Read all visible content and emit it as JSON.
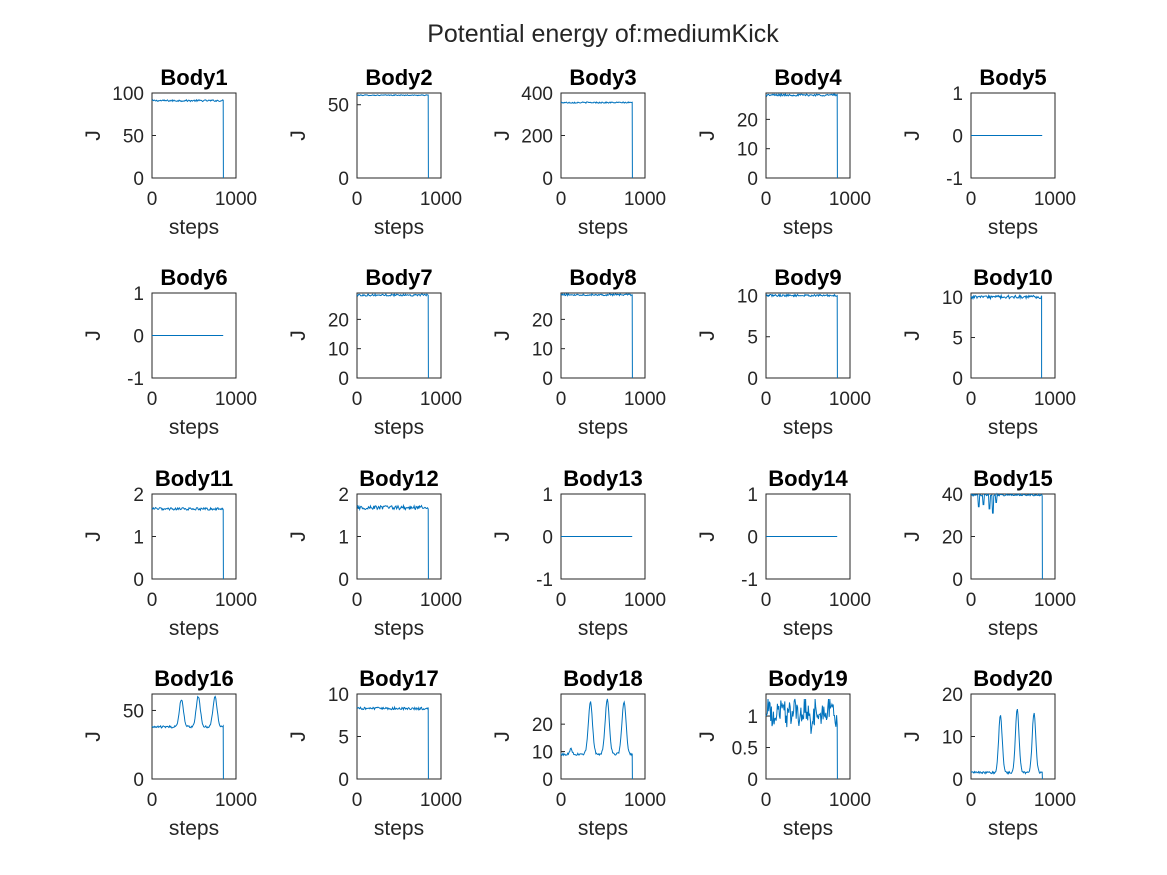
{
  "figure_title": "Potential energy of:mediumKick",
  "colors": {
    "line": "#0072BD",
    "axes": "#262626"
  },
  "chart_data": [
    {
      "type": "line",
      "title": "Body1",
      "xlabel": "steps",
      "ylabel": "J",
      "xlim": [
        0,
        1000
      ],
      "ylim": [
        0,
        100
      ],
      "xticks": [
        "0",
        "1000"
      ],
      "yticks": [
        {
          "v": 0,
          "label": "0"
        },
        {
          "v": 50,
          "label": "50"
        },
        {
          "v": 100,
          "label": "100"
        }
      ],
      "series": [
        {
          "shape": "flat",
          "level": 91,
          "noise": 1.0,
          "x_end": 850,
          "drop_to": 0
        }
      ]
    },
    {
      "type": "line",
      "title": "Body2",
      "xlabel": "steps",
      "ylabel": "J",
      "xlim": [
        0,
        1000
      ],
      "ylim": [
        0,
        58
      ],
      "xticks": [
        "0",
        "1000"
      ],
      "yticks": [
        {
          "v": 0,
          "label": "0"
        },
        {
          "v": 50,
          "label": "50"
        }
      ],
      "series": [
        {
          "shape": "flat",
          "level": 56.5,
          "noise": 0.3,
          "x_end": 850,
          "drop_to": 0
        }
      ]
    },
    {
      "type": "line",
      "title": "Body3",
      "xlabel": "steps",
      "ylabel": "J",
      "xlim": [
        0,
        1000
      ],
      "ylim": [
        0,
        400
      ],
      "xticks": [
        "0",
        "1000"
      ],
      "yticks": [
        {
          "v": 0,
          "label": "0"
        },
        {
          "v": 200,
          "label": "200"
        },
        {
          "v": 400,
          "label": "400"
        }
      ],
      "series": [
        {
          "shape": "flat",
          "level": 355,
          "noise": 3,
          "x_end": 850,
          "drop_to": 0
        }
      ]
    },
    {
      "type": "line",
      "title": "Body4",
      "xlabel": "steps",
      "ylabel": "J",
      "xlim": [
        0,
        1000
      ],
      "ylim": [
        0,
        29
      ],
      "xticks": [
        "0",
        "1000"
      ],
      "yticks": [
        {
          "v": 0,
          "label": "0"
        },
        {
          "v": 10,
          "label": "10"
        },
        {
          "v": 20,
          "label": "20"
        }
      ],
      "series": [
        {
          "shape": "flat",
          "level": 28.3,
          "noise": 0.35,
          "x_end": 850,
          "drop_to": 0
        }
      ]
    },
    {
      "type": "line",
      "title": "Body5",
      "xlabel": "steps",
      "ylabel": "J",
      "xlim": [
        0,
        1000
      ],
      "ylim": [
        -1,
        1
      ],
      "xticks": [
        "0",
        "1000"
      ],
      "yticks": [
        {
          "v": -1,
          "label": "-1"
        },
        {
          "v": 0,
          "label": "0"
        },
        {
          "v": 1,
          "label": "1"
        }
      ],
      "series": [
        {
          "shape": "flat",
          "level": 0,
          "noise": 0,
          "x_end": 850,
          "drop_to": null
        }
      ]
    },
    {
      "type": "line",
      "title": "Body6",
      "xlabel": "steps",
      "ylabel": "J",
      "xlim": [
        0,
        1000
      ],
      "ylim": [
        -1,
        1
      ],
      "xticks": [
        "0",
        "1000"
      ],
      "yticks": [
        {
          "v": -1,
          "label": "-1"
        },
        {
          "v": 0,
          "label": "0"
        },
        {
          "v": 1,
          "label": "1"
        }
      ],
      "series": [
        {
          "shape": "flat",
          "level": 0,
          "noise": 0,
          "x_end": 850,
          "drop_to": null
        }
      ]
    },
    {
      "type": "line",
      "title": "Body7",
      "xlabel": "steps",
      "ylabel": "J",
      "xlim": [
        0,
        1000
      ],
      "ylim": [
        0,
        29
      ],
      "xticks": [
        "0",
        "1000"
      ],
      "yticks": [
        {
          "v": 0,
          "label": "0"
        },
        {
          "v": 10,
          "label": "10"
        },
        {
          "v": 20,
          "label": "20"
        }
      ],
      "series": [
        {
          "shape": "flat",
          "level": 28.3,
          "noise": 0.35,
          "x_end": 850,
          "drop_to": 0
        }
      ]
    },
    {
      "type": "line",
      "title": "Body8",
      "xlabel": "steps",
      "ylabel": "J",
      "xlim": [
        0,
        1000
      ],
      "ylim": [
        0,
        29
      ],
      "xticks": [
        "0",
        "1000"
      ],
      "yticks": [
        {
          "v": 0,
          "label": "0"
        },
        {
          "v": 10,
          "label": "10"
        },
        {
          "v": 20,
          "label": "20"
        }
      ],
      "series": [
        {
          "shape": "flat",
          "level": 28.4,
          "noise": 0.3,
          "x_end": 850,
          "drop_to": 0
        }
      ]
    },
    {
      "type": "line",
      "title": "Body9",
      "xlabel": "steps",
      "ylabel": "J",
      "xlim": [
        0,
        1000
      ],
      "ylim": [
        0,
        10.3
      ],
      "xticks": [
        "0",
        "1000"
      ],
      "yticks": [
        {
          "v": 0,
          "label": "0"
        },
        {
          "v": 5,
          "label": "5"
        },
        {
          "v": 10,
          "label": "10"
        }
      ],
      "series": [
        {
          "shape": "flat",
          "level": 10.0,
          "noise": 0.12,
          "x_end": 850,
          "drop_to": 0
        }
      ]
    },
    {
      "type": "line",
      "title": "Body10",
      "xlabel": "steps",
      "ylabel": "J",
      "xlim": [
        0,
        1000
      ],
      "ylim": [
        0,
        10.5
      ],
      "xticks": [
        "0",
        "1000"
      ],
      "yticks": [
        {
          "v": 0,
          "label": "0"
        },
        {
          "v": 5,
          "label": "5"
        },
        {
          "v": 10,
          "label": "10"
        }
      ],
      "series": [
        {
          "shape": "flat",
          "level": 10.0,
          "noise": 0.2,
          "x_end": 840,
          "drop_to": 0
        }
      ]
    },
    {
      "type": "line",
      "title": "Body11",
      "xlabel": "steps",
      "ylabel": "J",
      "xlim": [
        0,
        1000
      ],
      "ylim": [
        0,
        2
      ],
      "xticks": [
        "0",
        "1000"
      ],
      "yticks": [
        {
          "v": 0,
          "label": "0"
        },
        {
          "v": 1,
          "label": "1"
        },
        {
          "v": 2,
          "label": "2"
        }
      ],
      "series": [
        {
          "shape": "flat",
          "level": 1.65,
          "noise": 0.03,
          "x_end": 850,
          "drop_to": 0
        }
      ]
    },
    {
      "type": "line",
      "title": "Body12",
      "xlabel": "steps",
      "ylabel": "J",
      "xlim": [
        0,
        1000
      ],
      "ylim": [
        0,
        2
      ],
      "xticks": [
        "0",
        "1000"
      ],
      "yticks": [
        {
          "v": 0,
          "label": "0"
        },
        {
          "v": 1,
          "label": "1"
        },
        {
          "v": 2,
          "label": "2"
        }
      ],
      "series": [
        {
          "shape": "flat",
          "level": 1.68,
          "noise": 0.05,
          "x_end": 850,
          "drop_to": 0
        }
      ]
    },
    {
      "type": "line",
      "title": "Body13",
      "xlabel": "steps",
      "ylabel": "J",
      "xlim": [
        0,
        1000
      ],
      "ylim": [
        -1,
        1
      ],
      "xticks": [
        "0",
        "1000"
      ],
      "yticks": [
        {
          "v": -1,
          "label": "-1"
        },
        {
          "v": 0,
          "label": "0"
        },
        {
          "v": 1,
          "label": "1"
        }
      ],
      "series": [
        {
          "shape": "flat",
          "level": 0,
          "noise": 0,
          "x_end": 850,
          "drop_to": null
        }
      ]
    },
    {
      "type": "line",
      "title": "Body14",
      "xlabel": "steps",
      "ylabel": "J",
      "xlim": [
        0,
        1000
      ],
      "ylim": [
        -1,
        1
      ],
      "xticks": [
        "0",
        "1000"
      ],
      "yticks": [
        {
          "v": -1,
          "label": "-1"
        },
        {
          "v": 0,
          "label": "0"
        },
        {
          "v": 1,
          "label": "1"
        }
      ],
      "series": [
        {
          "shape": "flat",
          "level": 0,
          "noise": 0,
          "x_end": 850,
          "drop_to": null
        }
      ]
    },
    {
      "type": "line",
      "title": "Body15",
      "xlabel": "steps",
      "ylabel": "J",
      "xlim": [
        0,
        1000
      ],
      "ylim": [
        0,
        40
      ],
      "xticks": [
        "0",
        "1000"
      ],
      "yticks": [
        {
          "v": 0,
          "label": "0"
        },
        {
          "v": 20,
          "label": "20"
        },
        {
          "v": 40,
          "label": "40"
        }
      ],
      "series": [
        {
          "shape": "dips",
          "level": 39.5,
          "noise": 0.4,
          "dips": [
            [
              90,
              34
            ],
            [
              150,
              35
            ],
            [
              220,
              33
            ],
            [
              260,
              31
            ],
            [
              300,
              36
            ]
          ],
          "x_end": 850,
          "drop_to": 0
        }
      ]
    },
    {
      "type": "line",
      "title": "Body16",
      "xlabel": "steps",
      "ylabel": "J",
      "xlim": [
        0,
        1000
      ],
      "ylim": [
        0,
        62
      ],
      "xticks": [
        "0",
        "1000"
      ],
      "yticks": [
        {
          "v": 0,
          "label": "0"
        },
        {
          "v": 50,
          "label": "50"
        }
      ],
      "series": [
        {
          "shape": "peaks",
          "level": 38,
          "noise": 0.8,
          "peaks": [
            [
              350,
              58,
              35
            ],
            [
              550,
              60,
              35
            ],
            [
              750,
              60,
              35
            ]
          ],
          "x_end": 850,
          "drop_to": 0
        }
      ]
    },
    {
      "type": "line",
      "title": "Body17",
      "xlabel": "steps",
      "ylabel": "J",
      "xlim": [
        0,
        1000
      ],
      "ylim": [
        0,
        10
      ],
      "xticks": [
        "0",
        "1000"
      ],
      "yticks": [
        {
          "v": 0,
          "label": "0"
        },
        {
          "v": 5,
          "label": "5"
        },
        {
          "v": 10,
          "label": "10"
        }
      ],
      "series": [
        {
          "shape": "flat",
          "level": 8.3,
          "noise": 0.15,
          "x_end": 850,
          "drop_to": 0
        }
      ]
    },
    {
      "type": "line",
      "title": "Body18",
      "xlabel": "steps",
      "ylabel": "J",
      "xlim": [
        0,
        1000
      ],
      "ylim": [
        0,
        31
      ],
      "xticks": [
        "0",
        "1000"
      ],
      "yticks": [
        {
          "v": 0,
          "label": "0"
        },
        {
          "v": 10,
          "label": "10"
        },
        {
          "v": 20,
          "label": "20"
        }
      ],
      "series": [
        {
          "shape": "peaks",
          "level": 9,
          "noise": 0.4,
          "peaks": [
            [
              120,
              11,
              20
            ],
            [
              350,
              28,
              35
            ],
            [
              550,
              29,
              35
            ],
            [
              750,
              28,
              35
            ]
          ],
          "x_end": 850,
          "drop_to": 0
        }
      ]
    },
    {
      "type": "line",
      "title": "Body19",
      "xlabel": "steps",
      "ylabel": "J",
      "xlim": [
        0,
        1000
      ],
      "ylim": [
        0,
        1.35
      ],
      "xticks": [
        "0",
        "1000"
      ],
      "yticks": [
        {
          "v": 0,
          "label": "0"
        },
        {
          "v": 0.5,
          "label": "0.5"
        },
        {
          "v": 1,
          "label": "1"
        }
      ],
      "series": [
        {
          "shape": "noisy",
          "level": 1.05,
          "noise": 0.22,
          "x_end": 850,
          "drop_to": 0
        }
      ]
    },
    {
      "type": "line",
      "title": "Body20",
      "xlabel": "steps",
      "ylabel": "J",
      "xlim": [
        0,
        1000
      ],
      "ylim": [
        0,
        20
      ],
      "xticks": [
        "0",
        "1000"
      ],
      "yticks": [
        {
          "v": 0,
          "label": "0"
        },
        {
          "v": 10,
          "label": "10"
        },
        {
          "v": 20,
          "label": "20"
        }
      ],
      "series": [
        {
          "shape": "peaks",
          "level": 1.5,
          "noise": 0.25,
          "peaks": [
            [
              350,
              15,
              30
            ],
            [
              550,
              16.5,
              30
            ],
            [
              750,
              15.5,
              30
            ]
          ],
          "x_end": 850,
          "drop_to": 0
        }
      ]
    }
  ]
}
